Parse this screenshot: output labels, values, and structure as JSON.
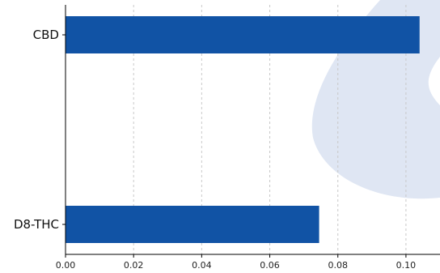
{
  "chart_data": {
    "type": "bar",
    "orientation": "horizontal",
    "categories": [
      "CBD",
      "D8-THC"
    ],
    "values": [
      0.104,
      0.0745
    ],
    "xlim": [
      0,
      0.11
    ],
    "xticks": [
      "0.00",
      "0.02",
      "0.04",
      "0.06",
      "0.08",
      "0.10"
    ],
    "grid": "x-dashed",
    "bar_color": "#1153a5",
    "watermark_color": "#dfe6f3"
  }
}
